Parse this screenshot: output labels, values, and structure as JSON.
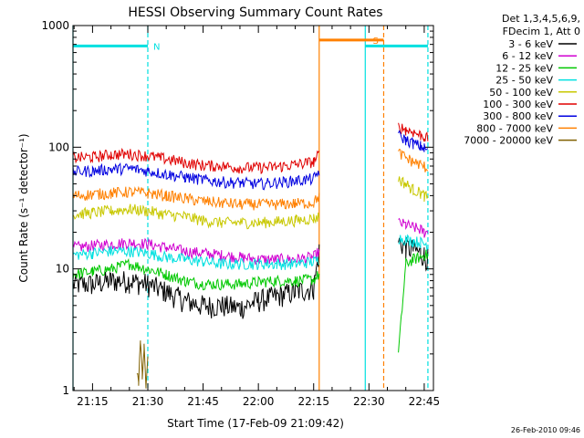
{
  "chart_data": {
    "type": "line",
    "title": "HESSI Observing Summary Count Rates",
    "xlabel": "Start Time (17-Feb-09 21:09:42)",
    "ylabel": "Count Rate (s⁻¹ detector⁻¹)",
    "yscale": "log",
    "ylim": [
      1,
      1000
    ],
    "xlim": [
      "21:09:42",
      "22:47:30"
    ],
    "x_ticks": [
      "21:15",
      "21:30",
      "21:45",
      "22:00",
      "22:15",
      "22:30",
      "22:45"
    ],
    "y_ticks": [
      "1",
      "10",
      "100",
      "1000"
    ],
    "legend_header": [
      "Det 1,3,4,5,6,9,",
      "FDecim 1, Att 0"
    ],
    "legend_placement": "right",
    "grid": false,
    "timestamp": "26-Feb-2010 09:46",
    "series": [
      {
        "name": "3 - 6 keV",
        "color": "#000000",
        "x": [
          "21:09:42",
          "21:15",
          "21:20",
          "21:25",
          "21:30",
          "21:35",
          "21:40",
          "21:45",
          "21:50",
          "21:55",
          "22:00",
          "22:05",
          "22:10",
          "22:15",
          "22:16:30",
          "22:38",
          "22:40",
          "22:42",
          "22:44",
          "22:45",
          "22:46"
        ],
        "y": [
          7.5,
          7.5,
          8,
          8,
          7.5,
          6.5,
          5.5,
          5,
          5,
          4.8,
          5.5,
          6,
          6.5,
          7,
          14,
          17,
          15,
          14.5,
          13.5,
          13,
          12
        ]
      },
      {
        "name": "6 - 12 keV",
        "color": "#d000d0",
        "x": [
          "21:09:42",
          "21:15",
          "21:20",
          "21:25",
          "21:30",
          "21:35",
          "21:40",
          "21:45",
          "21:50",
          "21:55",
          "22:00",
          "22:05",
          "22:10",
          "22:15",
          "22:16:30",
          "22:38",
          "22:40",
          "22:42",
          "22:44",
          "22:45",
          "22:46"
        ],
        "y": [
          15,
          15.5,
          16,
          16.5,
          16,
          15,
          14,
          13.5,
          13,
          12.5,
          12,
          12,
          12,
          12.5,
          14,
          24,
          23,
          22,
          21,
          20,
          20
        ]
      },
      {
        "name": "12 - 25 keV",
        "color": "#00c800",
        "x": [
          "21:09:42",
          "21:15",
          "21:20",
          "21:25",
          "21:30",
          "21:35",
          "21:40",
          "21:45",
          "21:50",
          "21:55",
          "22:00",
          "22:05",
          "22:10",
          "22:15",
          "22:16:30",
          "22:38",
          "22:40",
          "22:42",
          "22:44",
          "22:45",
          "22:46"
        ],
        "y": [
          9,
          9.5,
          10,
          11,
          10,
          9,
          8,
          7.5,
          7.5,
          7.5,
          7.8,
          8,
          8,
          8.2,
          9,
          2,
          11,
          12,
          12.5,
          13,
          13
        ]
      },
      {
        "name": "25 - 50 keV",
        "color": "#00e0e0",
        "x": [
          "21:09:42",
          "21:15",
          "21:20",
          "21:25",
          "21:30",
          "21:35",
          "21:40",
          "21:45",
          "21:50",
          "21:55",
          "22:00",
          "22:05",
          "22:10",
          "22:15",
          "22:16:30",
          "22:38",
          "22:40",
          "22:42",
          "22:44",
          "22:45",
          "22:46"
        ],
        "y": [
          13,
          13.5,
          14,
          14,
          13.5,
          12.5,
          12,
          11.5,
          11,
          11,
          11,
          11,
          11,
          11.5,
          12,
          18,
          17.5,
          17,
          16.5,
          16,
          16
        ]
      },
      {
        "name": "50 - 100 keV",
        "color": "#c8c800",
        "x": [
          "21:09:42",
          "21:15",
          "21:20",
          "21:25",
          "21:30",
          "21:35",
          "21:40",
          "21:45",
          "21:50",
          "21:55",
          "22:00",
          "22:05",
          "22:10",
          "22:15",
          "22:16:30",
          "22:38",
          "22:40",
          "22:42",
          "22:44",
          "22:45",
          "22:46"
        ],
        "y": [
          28,
          29,
          30,
          31,
          30,
          28,
          27,
          25,
          24,
          24,
          24,
          24.5,
          25,
          26,
          27,
          55,
          50,
          45,
          42,
          40,
          38
        ]
      },
      {
        "name": "100 - 300 keV",
        "color": "#e00000",
        "x": [
          "21:09:42",
          "21:15",
          "21:20",
          "21:25",
          "21:30",
          "21:35",
          "21:40",
          "21:45",
          "21:50",
          "21:55",
          "22:00",
          "22:05",
          "22:10",
          "22:15",
          "22:16:30",
          "22:38",
          "22:40",
          "22:42",
          "22:44",
          "22:45",
          "22:46"
        ],
        "y": [
          82,
          83,
          87,
          88,
          85,
          80,
          75,
          71,
          70,
          68,
          68,
          69,
          72,
          76,
          88,
          148,
          140,
          133,
          126,
          122,
          118
        ]
      },
      {
        "name": "300 - 800 keV",
        "color": "#0000e0",
        "x": [
          "21:09:42",
          "21:15",
          "21:20",
          "21:25",
          "21:30",
          "21:35",
          "21:40",
          "21:45",
          "21:50",
          "21:55",
          "22:00",
          "22:05",
          "22:10",
          "22:15",
          "22:16:30",
          "22:38",
          "22:40",
          "22:42",
          "22:44",
          "22:45",
          "22:46"
        ],
        "y": [
          63,
          64,
          66,
          67,
          64,
          60,
          57,
          54,
          52,
          51,
          50,
          51,
          53,
          55,
          64,
          125,
          115,
          108,
          102,
          98,
          95
        ]
      },
      {
        "name": "800 - 7000 keV",
        "color": "#ff8000",
        "x": [
          "21:09:42",
          "21:15",
          "21:20",
          "21:25",
          "21:30",
          "21:35",
          "21:40",
          "21:45",
          "21:50",
          "21:55",
          "22:00",
          "22:05",
          "22:10",
          "22:15",
          "22:16:30",
          "22:38",
          "22:40",
          "22:42",
          "22:44",
          "22:45",
          "22:46"
        ],
        "y": [
          40,
          41,
          42,
          43,
          42,
          40,
          38,
          36,
          35,
          34,
          34,
          34,
          34.5,
          35,
          40,
          90,
          82,
          76,
          72,
          70,
          66
        ]
      },
      {
        "name": "7000 - 20000 keV",
        "color": "#806000",
        "x": [
          "21:27",
          "21:27:30",
          "21:28",
          "21:28:30",
          "21:29",
          "21:29:30",
          "21:30"
        ],
        "y": [
          1.5,
          1.2,
          2.5,
          1.3,
          2.2,
          1.1,
          1.8
        ]
      }
    ],
    "flags": [
      {
        "label": "N",
        "color": "#00e0e0",
        "bar": [
          "21:09:42",
          "21:30"
        ],
        "level": 680
      },
      {
        "label": "S",
        "color": "#ff8000",
        "bar": [
          "22:16:30",
          "22:34"
        ],
        "level": 760
      },
      {
        "label": "",
        "color": "#00e0e0",
        "bar": [
          "22:29",
          "22:46"
        ],
        "level": 680
      }
    ],
    "markers": [
      {
        "time": "21:09:42",
        "color": "#00e0e0",
        "style": "solid"
      },
      {
        "time": "21:30",
        "color": "#00e0e0",
        "style": "dashed"
      },
      {
        "time": "22:16:30",
        "color": "#ff8000",
        "style": "solid"
      },
      {
        "time": "22:29",
        "color": "#00e0e0",
        "style": "solid"
      },
      {
        "time": "22:34",
        "color": "#ff8000",
        "style": "dashed"
      },
      {
        "time": "22:46",
        "color": "#00e0e0",
        "style": "dashed"
      }
    ]
  }
}
